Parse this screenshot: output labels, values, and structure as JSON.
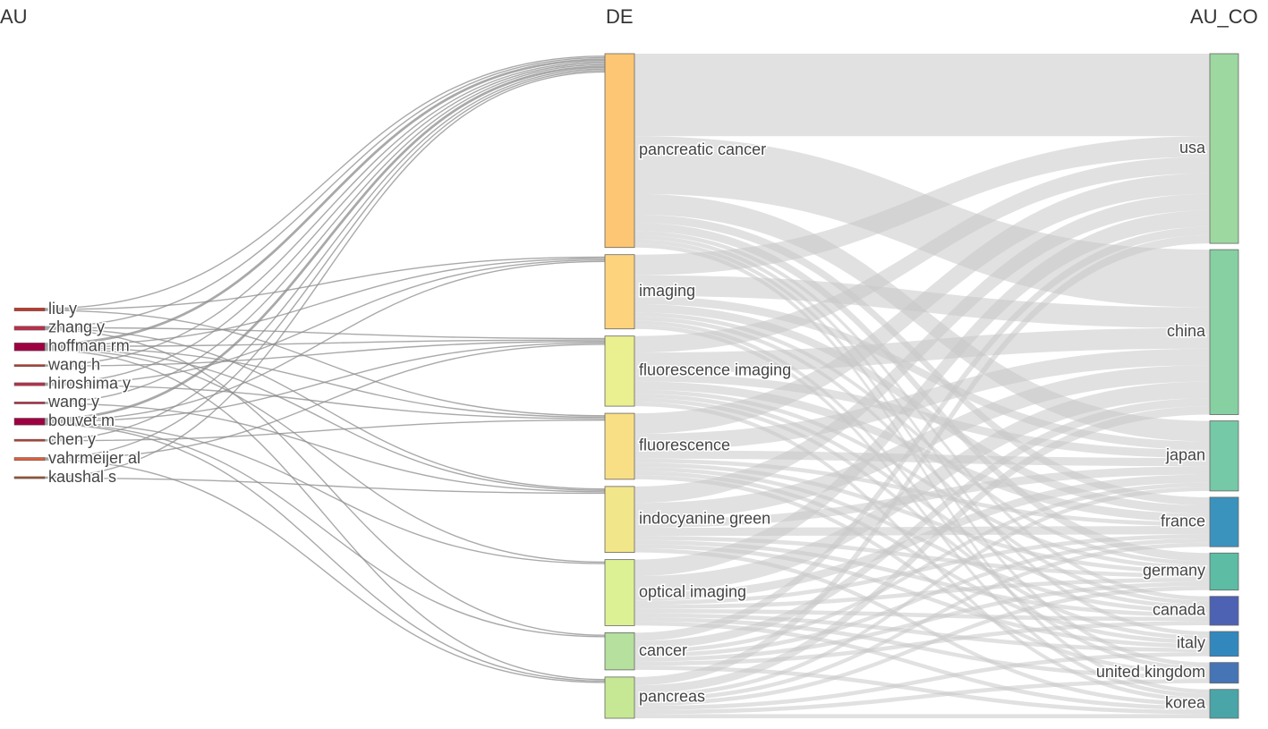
{
  "column_titles": {
    "left": "AU",
    "middle": "DE",
    "right": "AU_CO"
  },
  "colors": {
    "band": "#c8c8c8",
    "thread": "#8c8c8c",
    "label": "#444444"
  },
  "nodes": {
    "au": [
      {
        "id": "liu y",
        "label": "liu y",
        "color": "#c0392b"
      },
      {
        "id": "zhang y",
        "label": "zhang y",
        "color": "#b8304a"
      },
      {
        "id": "hoffman rm",
        "label": "hoffman rm",
        "color": "#9e0142"
      },
      {
        "id": "wang h",
        "label": "wang h",
        "color": "#c0392b"
      },
      {
        "id": "hiroshima y",
        "label": "hiroshima y",
        "color": "#b8304a"
      },
      {
        "id": "wang y",
        "label": "wang y",
        "color": "#b8304a"
      },
      {
        "id": "bouvet m",
        "label": "bouvet m",
        "color": "#9e0142"
      },
      {
        "id": "chen y",
        "label": "chen y",
        "color": "#c0392b"
      },
      {
        "id": "vahrmeijer al",
        "label": "vahrmeijer al",
        "color": "#e0603f"
      },
      {
        "id": "kaushal s",
        "label": "kaushal s",
        "color": "#a0522d"
      }
    ],
    "de": [
      {
        "id": "pancreatic cancer",
        "label": "pancreatic cancer",
        "color": "#fdc675"
      },
      {
        "id": "imaging",
        "label": "imaging",
        "color": "#fdd37d"
      },
      {
        "id": "fluorescence imaging",
        "label": "fluorescence imaging",
        "color": "#eaef8f"
      },
      {
        "id": "fluorescence",
        "label": "fluorescence",
        "color": "#f8df86"
      },
      {
        "id": "indocyanine green",
        "label": "indocyanine green",
        "color": "#f2e68a"
      },
      {
        "id": "optical imaging",
        "label": "optical imaging",
        "color": "#dcf193"
      },
      {
        "id": "cancer",
        "label": "cancer",
        "color": "#b5e09e"
      },
      {
        "id": "pancreas",
        "label": "pancreas",
        "color": "#c6e895"
      }
    ],
    "co": [
      {
        "id": "usa",
        "label": "usa",
        "color": "#9cd8a0"
      },
      {
        "id": "china",
        "label": "china",
        "color": "#86d0a2"
      },
      {
        "id": "japan",
        "label": "japan",
        "color": "#75c9a6"
      },
      {
        "id": "france",
        "label": "france",
        "color": "#3a93bd"
      },
      {
        "id": "germany",
        "label": "germany",
        "color": "#5cbca4"
      },
      {
        "id": "canada",
        "label": "canada",
        "color": "#4d62b3"
      },
      {
        "id": "italy",
        "label": "italy",
        "color": "#3288bd"
      },
      {
        "id": "united kingdom",
        "label": "united kingdom",
        "color": "#4675b6"
      },
      {
        "id": "korea",
        "label": "korea",
        "color": "#4aa5a8"
      }
    ]
  },
  "links_au_de": [
    [
      "liu y",
      "pancreatic cancer",
      1
    ],
    [
      "liu y",
      "imaging",
      1
    ],
    [
      "liu y",
      "fluorescence",
      1
    ],
    [
      "zhang y",
      "pancreatic cancer",
      1
    ],
    [
      "zhang y",
      "fluorescence imaging",
      1
    ],
    [
      "zhang y",
      "indocyanine green",
      1
    ],
    [
      "zhang y",
      "cancer",
      1
    ],
    [
      "hoffman rm",
      "pancreatic cancer",
      2
    ],
    [
      "hoffman rm",
      "imaging",
      1
    ],
    [
      "hoffman rm",
      "fluorescence imaging",
      1
    ],
    [
      "hoffman rm",
      "fluorescence",
      1
    ],
    [
      "hoffman rm",
      "indocyanine green",
      1
    ],
    [
      "hoffman rm",
      "optical imaging",
      1
    ],
    [
      "hoffman rm",
      "pancreas",
      1
    ],
    [
      "wang h",
      "pancreatic cancer",
      1
    ],
    [
      "wang h",
      "fluorescence imaging",
      1
    ],
    [
      "hiroshima y",
      "pancreatic cancer",
      1
    ],
    [
      "hiroshima y",
      "imaging",
      1
    ],
    [
      "hiroshima y",
      "fluorescence",
      1
    ],
    [
      "wang y",
      "pancreatic cancer",
      1
    ],
    [
      "wang y",
      "indocyanine green",
      1
    ],
    [
      "bouvet m",
      "pancreatic cancer",
      2
    ],
    [
      "bouvet m",
      "imaging",
      1
    ],
    [
      "bouvet m",
      "fluorescence imaging",
      1
    ],
    [
      "bouvet m",
      "optical imaging",
      1
    ],
    [
      "bouvet m",
      "cancer",
      1
    ],
    [
      "bouvet m",
      "pancreas",
      1
    ],
    [
      "chen y",
      "pancreatic cancer",
      1
    ],
    [
      "chen y",
      "fluorescence",
      1
    ],
    [
      "vahrmeijer al",
      "pancreatic cancer",
      1
    ],
    [
      "vahrmeijer al",
      "fluorescence imaging",
      1
    ],
    [
      "vahrmeijer al",
      "pancreas",
      1
    ],
    [
      "kaushal s",
      "pancreatic cancer",
      1
    ],
    [
      "kaushal s",
      "indocyanine green",
      1
    ]
  ],
  "links_de_co": [
    [
      "pancreatic cancer",
      "usa",
      20
    ],
    [
      "pancreatic cancer",
      "china",
      14
    ],
    [
      "pancreatic cancer",
      "japan",
      5
    ],
    [
      "pancreatic cancer",
      "france",
      2
    ],
    [
      "pancreatic cancer",
      "germany",
      2
    ],
    [
      "pancreatic cancer",
      "canada",
      1
    ],
    [
      "pancreatic cancer",
      "italy",
      1
    ],
    [
      "pancreatic cancer",
      "united kingdom",
      1
    ],
    [
      "pancreatic cancer",
      "korea",
      1
    ],
    [
      "imaging",
      "usa",
      5
    ],
    [
      "imaging",
      "china",
      5
    ],
    [
      "imaging",
      "japan",
      2
    ],
    [
      "imaging",
      "france",
      2
    ],
    [
      "imaging",
      "germany",
      1
    ],
    [
      "imaging",
      "canada",
      1
    ],
    [
      "imaging",
      "united kingdom",
      1
    ],
    [
      "imaging",
      "korea",
      1
    ],
    [
      "fluorescence imaging",
      "usa",
      4
    ],
    [
      "fluorescence imaging",
      "china",
      5
    ],
    [
      "fluorescence imaging",
      "japan",
      2
    ],
    [
      "fluorescence imaging",
      "france",
      2
    ],
    [
      "fluorescence imaging",
      "germany",
      1
    ],
    [
      "fluorescence imaging",
      "canada",
      1
    ],
    [
      "fluorescence imaging",
      "italy",
      1
    ],
    [
      "fluorescence imaging",
      "korea",
      1
    ],
    [
      "fluorescence",
      "usa",
      5
    ],
    [
      "fluorescence",
      "china",
      4
    ],
    [
      "fluorescence",
      "japan",
      2
    ],
    [
      "fluorescence",
      "france",
      1
    ],
    [
      "fluorescence",
      "germany",
      1
    ],
    [
      "fluorescence",
      "canada",
      1
    ],
    [
      "fluorescence",
      "italy",
      1
    ],
    [
      "fluorescence",
      "united kingdom",
      1
    ],
    [
      "indocyanine green",
      "usa",
      4
    ],
    [
      "indocyanine green",
      "china",
      4
    ],
    [
      "indocyanine green",
      "japan",
      2
    ],
    [
      "indocyanine green",
      "france",
      2
    ],
    [
      "indocyanine green",
      "germany",
      1
    ],
    [
      "indocyanine green",
      "canada",
      1
    ],
    [
      "indocyanine green",
      "italy",
      1
    ],
    [
      "indocyanine green",
      "korea",
      1
    ],
    [
      "optical imaging",
      "usa",
      4
    ],
    [
      "optical imaging",
      "china",
      4
    ],
    [
      "optical imaging",
      "japan",
      2
    ],
    [
      "optical imaging",
      "france",
      1
    ],
    [
      "optical imaging",
      "germany",
      1
    ],
    [
      "optical imaging",
      "canada",
      1
    ],
    [
      "optical imaging",
      "italy",
      1
    ],
    [
      "optical imaging",
      "united kingdom",
      1
    ],
    [
      "optical imaging",
      "korea",
      1
    ],
    [
      "cancer",
      "usa",
      2
    ],
    [
      "cancer",
      "china",
      2
    ],
    [
      "cancer",
      "japan",
      1
    ],
    [
      "cancer",
      "france",
      1
    ],
    [
      "cancer",
      "germany",
      1
    ],
    [
      "cancer",
      "canada",
      1
    ],
    [
      "cancer",
      "korea",
      1
    ],
    [
      "pancreas",
      "usa",
      2
    ],
    [
      "pancreas",
      "china",
      2
    ],
    [
      "pancreas",
      "japan",
      1
    ],
    [
      "pancreas",
      "france",
      1
    ],
    [
      "pancreas",
      "germany",
      1
    ],
    [
      "pancreas",
      "italy",
      1
    ],
    [
      "pancreas",
      "united kingdom",
      1
    ],
    [
      "pancreas",
      "korea",
      1
    ]
  ]
}
